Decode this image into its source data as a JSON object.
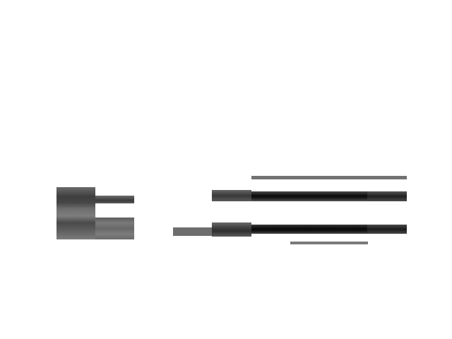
{
  "canvas": {
    "background": "#ffffff"
  },
  "palette": {
    "dark": "#0a0a0a",
    "mid_dark": "#3c3c3c",
    "mid": "#6e6e6e",
    "light_gray": "#7b7b7b"
  },
  "shapes": [
    "block-left-main",
    "block-left-upper-tab",
    "block-left-lower-tab",
    "line-top",
    "bar-upper-head",
    "bar-upper-body",
    "bar-upper-tail",
    "bar-lower-lead",
    "bar-lower-head",
    "bar-lower-body",
    "bar-lower-tail",
    "line-bottom"
  ]
}
